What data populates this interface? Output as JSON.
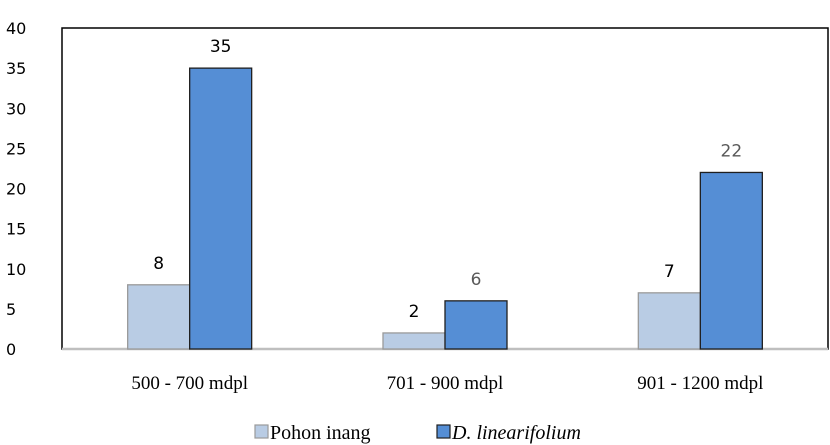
{
  "chart_data": {
    "type": "bar",
    "categories": [
      "500 - 700 mdpl",
      "701 - 900 mdpl",
      "901 - 1200 mdpl"
    ],
    "series": [
      {
        "name": "Pohon inang",
        "values": [
          8,
          2,
          7
        ],
        "color": "#b9cce4",
        "stroke": "#9a9a9a",
        "label_colors": [
          "#000000",
          "#000000",
          "#000000"
        ]
      },
      {
        "name": "D. linearifolium",
        "values": [
          35,
          6,
          22
        ],
        "color": "#558ed5",
        "stroke": "#1f1f1f",
        "label_colors": [
          "#000000",
          "#595959",
          "#595959"
        ]
      }
    ],
    "title": "",
    "xlabel": "",
    "ylabel": "",
    "ylim": [
      0,
      40
    ],
    "yticks": [
      0,
      5,
      10,
      15,
      20,
      25,
      30,
      35,
      40
    ],
    "grid": false,
    "legend_position": "bottom"
  }
}
